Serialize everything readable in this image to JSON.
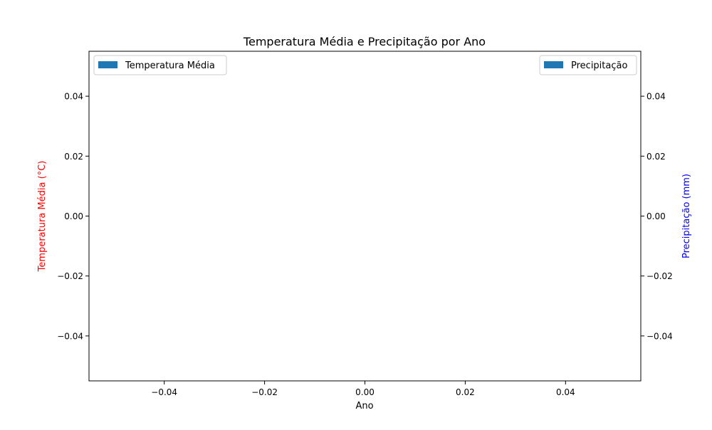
{
  "chart_data": {
    "type": "bar",
    "title": "Temperatura Média e Precipitação por Ano",
    "xlabel": "Ano",
    "ylabel_left": "Temperatura Média (°C)",
    "ylabel_right": "Precipitação (mm)",
    "xlim": [
      -0.055,
      0.055
    ],
    "ylim_left": [
      -0.055,
      0.055
    ],
    "ylim_right": [
      -0.055,
      0.055
    ],
    "x_ticks": [
      -0.04,
      -0.02,
      0.0,
      0.02,
      0.04
    ],
    "x_tick_labels": [
      "−0.04",
      "−0.02",
      "0.00",
      "0.02",
      "0.04"
    ],
    "y_left_ticks": [
      0.04,
      0.02,
      0.0,
      -0.02,
      -0.04
    ],
    "y_left_tick_labels": [
      "0.04",
      "0.02",
      "0.00",
      "−0.02",
      "−0.04"
    ],
    "y_right_ticks": [
      0.04,
      0.02,
      0.0,
      -0.02,
      -0.04
    ],
    "y_right_tick_labels": [
      "0.04",
      "0.02",
      "0.00",
      "−0.02",
      "−0.04"
    ],
    "categories": [],
    "series": [
      {
        "name": "Temperatura Média",
        "axis": "left",
        "values": [],
        "color": "#1f77b4"
      },
      {
        "name": "Precipitação",
        "axis": "right",
        "values": [],
        "color": "#1f77b4"
      }
    ],
    "legends": [
      {
        "placement": "top-left",
        "label": "Temperatura Média",
        "color": "#1f77b4"
      },
      {
        "placement": "top-right",
        "label": "Precipitação",
        "color": "#1f77b4"
      }
    ],
    "colors": {
      "ylabel_left": "#ff0000",
      "ylabel_right": "#0000ff",
      "text": "#000000",
      "axes": "#000000"
    },
    "grid": false
  }
}
